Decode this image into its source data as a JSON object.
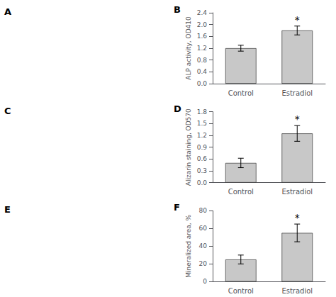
{
  "chart_data": [
    {
      "type": "bar",
      "title": "B",
      "categories": [
        "Control",
        "Estradiol"
      ],
      "values": [
        1.2,
        1.8
      ],
      "errors": [
        0.1,
        0.15
      ],
      "color": "#c8c8c8",
      "ylabel": "ALP activity, OD410",
      "ylim": [
        0,
        2.4
      ],
      "yticks": [
        {
          "value": 0.0,
          "label": "0.0"
        },
        0.4,
        0.8,
        1.2,
        1.6,
        {
          "value": 2.0,
          "label": "2.0"
        },
        2.4
      ],
      "grid": false,
      "annotations": [
        {
          "text": "A"
        },
        {
          "text": "*",
          "x": "Estradiol"
        }
      ]
    },
    {
      "type": "bar",
      "title": "D",
      "categories": [
        "Control",
        "Estradiol"
      ],
      "values": [
        0.5,
        1.25
      ],
      "errors": [
        0.12,
        0.2
      ],
      "color": "#c8c8c8",
      "ylabel": "Alizarin staining, OD570",
      "ylim": [
        0,
        1.8
      ],
      "yticks": [
        {
          "value": 0.0,
          "label": "0.0"
        },
        0.3,
        0.6,
        0.9,
        1.2,
        1.5,
        1.8
      ],
      "grid": false,
      "annotations": [
        {
          "text": "C"
        },
        {
          "text": "*",
          "x": "Estradiol"
        }
      ]
    },
    {
      "type": "bar",
      "title": "F",
      "categories": [
        "Control",
        "Estradiol"
      ],
      "values": [
        25,
        55
      ],
      "errors": [
        5,
        10
      ],
      "color": "#c8c8c8",
      "ylabel": "Mineralized area, %",
      "ylim": [
        0,
        80
      ],
      "yticks": [
        0,
        20,
        40,
        60,
        80
      ],
      "grid": false,
      "annotations": [
        {
          "text": "E"
        },
        {
          "text": "*",
          "x": "Estradiol"
        }
      ]
    }
  ]
}
